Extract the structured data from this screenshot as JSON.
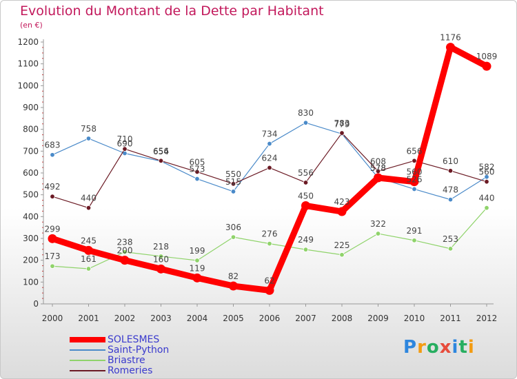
{
  "title": "Evolution du Montant de la Dette par Habitant",
  "unit": "(en €)",
  "logo": {
    "letters": [
      "P",
      "r",
      "o",
      "x",
      "i",
      "t",
      "i"
    ],
    "colors": [
      "#2e86de",
      "#f39c12",
      "#27ae60",
      "#e74c3c",
      "#2e86de",
      "#27ae60",
      "#f39c12"
    ]
  },
  "chart_data": {
    "type": "line",
    "title": "Evolution du Montant de la Dette par Habitant",
    "ylabel": "(en €)",
    "x": [
      "2000",
      "2001",
      "2002",
      "2003",
      "2004",
      "2005",
      "2006",
      "2007",
      "2008",
      "2009",
      "2010",
      "2011",
      "2012"
    ],
    "ylim": [
      0,
      1200
    ],
    "yticks": [
      "0",
      "100",
      "200",
      "300",
      "400",
      "500",
      "600",
      "700",
      "800",
      "900",
      "1000",
      "1100",
      "1200"
    ],
    "grid": false,
    "legend": "bottom-left",
    "series": [
      {
        "name": "SOLESMES",
        "color": "#ff0000",
        "values": [
          299,
          245,
          200,
          160,
          119,
          82,
          62,
          450,
          423,
          578,
          560,
          1176,
          1089
        ],
        "labels": [
          "299",
          "245",
          "200",
          "160",
          "119",
          "82",
          "62",
          "450",
          "423",
          "578",
          "560",
          "1176",
          "1089"
        ]
      },
      {
        "name": "Saint-Python",
        "color": "#4a8ac9",
        "values": [
          683,
          758,
          690,
          654,
          573,
          515,
          734,
          830,
          779,
          578,
          526,
          478,
          582
        ],
        "labels": [
          "683",
          "758",
          "690",
          "654",
          "573",
          "515",
          "734",
          "830",
          "779",
          "578",
          "526",
          "478",
          "582"
        ]
      },
      {
        "name": "Briastre",
        "color": "#8fd36a",
        "values": [
          173,
          161,
          238,
          218,
          199,
          306,
          276,
          249,
          225,
          322,
          291,
          253,
          440
        ],
        "labels": [
          "173",
          "161",
          "238",
          "218",
          "199",
          "306",
          "276",
          "249",
          "225",
          "322",
          "291",
          "253",
          "440"
        ]
      },
      {
        "name": "Romeries",
        "color": "#6b1a24",
        "values": [
          492,
          440,
          710,
          656,
          605,
          550,
          624,
          556,
          783,
          608,
          656,
          610,
          560
        ],
        "labels": [
          "492",
          "440",
          "710",
          "656",
          "605",
          "550",
          "624",
          "556",
          "783",
          "608",
          "656",
          "610",
          "560"
        ]
      }
    ]
  }
}
